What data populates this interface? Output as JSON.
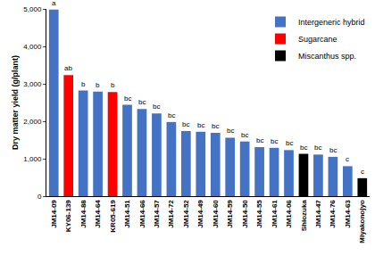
{
  "chart_data": {
    "type": "bar",
    "y_label": "Dry matter yield (g/plant)",
    "categories": [
      "JM14-09",
      "KY06-139",
      "JM14-88",
      "JM14-64",
      "KR05-619",
      "JM14-51",
      "JM14-66",
      "JM14-57",
      "JM14-72",
      "JM14-52",
      "JM14-49",
      "JM14-60",
      "JM14-59",
      "JM14-50",
      "JM14-55",
      "JM14-61",
      "JM14-06",
      "Shiozuka",
      "JM14-47",
      "JM14-76",
      "JM14-63",
      "Miyakonojyo"
    ],
    "series": [
      {
        "name": "Intergeneric hybrid",
        "color": "#4472c4",
        "values": [
          4980,
          null,
          2820,
          2790,
          null,
          2440,
          2330,
          2210,
          1980,
          1740,
          1720,
          1690,
          1560,
          1460,
          1310,
          1290,
          1230,
          null,
          1110,
          1050,
          800,
          null
        ]
      },
      {
        "name": "Sugarcane",
        "color": "#ff0000",
        "values": [
          null,
          3230,
          null,
          null,
          2780,
          null,
          null,
          null,
          null,
          null,
          null,
          null,
          null,
          null,
          null,
          null,
          null,
          null,
          null,
          null,
          null,
          null
        ]
      },
      {
        "name": "Miscanthus spp.",
        "color": "#000000",
        "values": [
          null,
          null,
          null,
          null,
          null,
          null,
          null,
          null,
          null,
          null,
          null,
          null,
          null,
          null,
          null,
          null,
          null,
          1130,
          null,
          null,
          null,
          480
        ]
      }
    ],
    "annotations": [
      "a",
      "ab",
      "b",
      "b",
      "b",
      "bc",
      "bc",
      "bc",
      "bc",
      "bc",
      "bc",
      "bc",
      "bc",
      "bc",
      "bc",
      "bc",
      "bc",
      "bc",
      "bc",
      "bc",
      "c",
      "c"
    ],
    "ylim": [
      0,
      5000
    ],
    "yticks": [
      0,
      {
        "value": 1000,
        "label": "1,000"
      },
      {
        "value": 2000,
        "label": "2,000"
      },
      {
        "value": 3000,
        "label": "3,000"
      },
      {
        "value": 4000,
        "label": "4,000"
      },
      {
        "value": 5000,
        "label": "5,000"
      }
    ],
    "grid": false,
    "legend": "top right"
  }
}
